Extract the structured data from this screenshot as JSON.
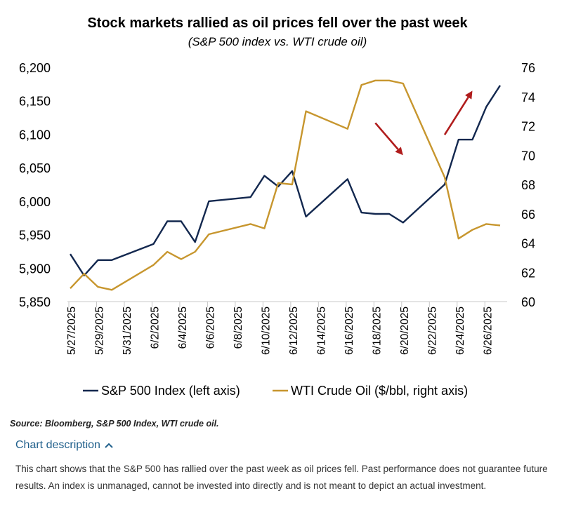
{
  "chart_data": {
    "type": "line",
    "title": "Stock markets rallied as oil prices fell over the past week",
    "subtitle": "(S&P 500 index vs. WTI crude oil)",
    "x_tick_labels": [
      "5/27/2025",
      "5/29/2025",
      "5/31/2025",
      "6/2/2025",
      "6/4/2025",
      "6/6/2025",
      "6/8/2025",
      "6/10/2025",
      "6/12/2025",
      "6/14/2025",
      "6/16/2025",
      "6/18/2025",
      "6/20/2025",
      "6/22/2025",
      "6/24/2025",
      "6/26/2025"
    ],
    "x_range": [
      "2025-05-27",
      "2025-06-27"
    ],
    "y_left": {
      "min": 5850,
      "max": 6200,
      "ticks": [
        "5,850",
        "5,900",
        "5,950",
        "6,000",
        "6,050",
        "6,100",
        "6,150",
        "6,200"
      ]
    },
    "y_right": {
      "min": 60,
      "max": 76,
      "ticks": [
        "60",
        "62",
        "64",
        "66",
        "68",
        "70",
        "72",
        "74",
        "76"
      ]
    },
    "grid": false,
    "legend_position": "bottom",
    "series": [
      {
        "name": "S&P 500 Index (left axis)",
        "axis": "left",
        "color": "#13284f",
        "points": [
          [
            "2025-05-27",
            5921
          ],
          [
            "2025-05-28",
            5889
          ],
          [
            "2025-05-29",
            5912
          ],
          [
            "2025-05-30",
            5912
          ],
          [
            "2025-06-02",
            5936
          ],
          [
            "2025-06-03",
            5970
          ],
          [
            "2025-06-04",
            5970
          ],
          [
            "2025-06-05",
            5939
          ],
          [
            "2025-06-06",
            6000
          ],
          [
            "2025-06-09",
            6006
          ],
          [
            "2025-06-10",
            6038
          ],
          [
            "2025-06-11",
            6022
          ],
          [
            "2025-06-12",
            6045
          ],
          [
            "2025-06-13",
            5977
          ],
          [
            "2025-06-16",
            6033
          ],
          [
            "2025-06-17",
            5983
          ],
          [
            "2025-06-18",
            5981
          ],
          [
            "2025-06-19",
            5981
          ],
          [
            "2025-06-20",
            5968
          ],
          [
            "2025-06-23",
            6025
          ],
          [
            "2025-06-24",
            6092
          ],
          [
            "2025-06-25",
            6092
          ],
          [
            "2025-06-26",
            6141
          ],
          [
            "2025-06-27",
            6173
          ]
        ]
      },
      {
        "name": "WTI Crude Oil ($/bbl, right axis)",
        "axis": "right",
        "color": "#c7962e",
        "points": [
          [
            "2025-05-27",
            60.9
          ],
          [
            "2025-05-28",
            61.9
          ],
          [
            "2025-05-29",
            61.0
          ],
          [
            "2025-05-30",
            60.8
          ],
          [
            "2025-06-02",
            62.5
          ],
          [
            "2025-06-03",
            63.4
          ],
          [
            "2025-06-04",
            62.9
          ],
          [
            "2025-06-05",
            63.4
          ],
          [
            "2025-06-06",
            64.6
          ],
          [
            "2025-06-09",
            65.3
          ],
          [
            "2025-06-10",
            65.0
          ],
          [
            "2025-06-11",
            68.1
          ],
          [
            "2025-06-12",
            68.0
          ],
          [
            "2025-06-13",
            73.0
          ],
          [
            "2025-06-16",
            71.8
          ],
          [
            "2025-06-17",
            74.8
          ],
          [
            "2025-06-18",
            75.1
          ],
          [
            "2025-06-19",
            75.1
          ],
          [
            "2025-06-20",
            74.9
          ],
          [
            "2025-06-23",
            68.5
          ],
          [
            "2025-06-24",
            64.3
          ],
          [
            "2025-06-25",
            64.9
          ],
          [
            "2025-06-26",
            65.3
          ],
          [
            "2025-06-27",
            65.2
          ]
        ]
      }
    ],
    "annotations": [
      {
        "type": "arrow",
        "color": "#b01c1c",
        "direction": "down",
        "axis": "right",
        "from": [
          "2025-06-18",
          72.2
        ],
        "to": [
          "2025-06-20",
          70.0
        ]
      },
      {
        "type": "arrow",
        "color": "#b01c1c",
        "direction": "up",
        "axis": "right",
        "from": [
          "2025-06-23",
          71.4
        ],
        "to": [
          "2025-06-25",
          74.4
        ]
      }
    ]
  },
  "footer": {
    "source": "Source: Bloomberg, S&P 500 Index, WTI crude oil.",
    "description_toggle": "Chart description",
    "description_text": "This chart shows that the S&P 500 has rallied over the past week as oil prices fell. Past performance does not guarantee future results. An index is unmanaged, cannot be invested into directly and is not meant to depict an actual investment."
  }
}
